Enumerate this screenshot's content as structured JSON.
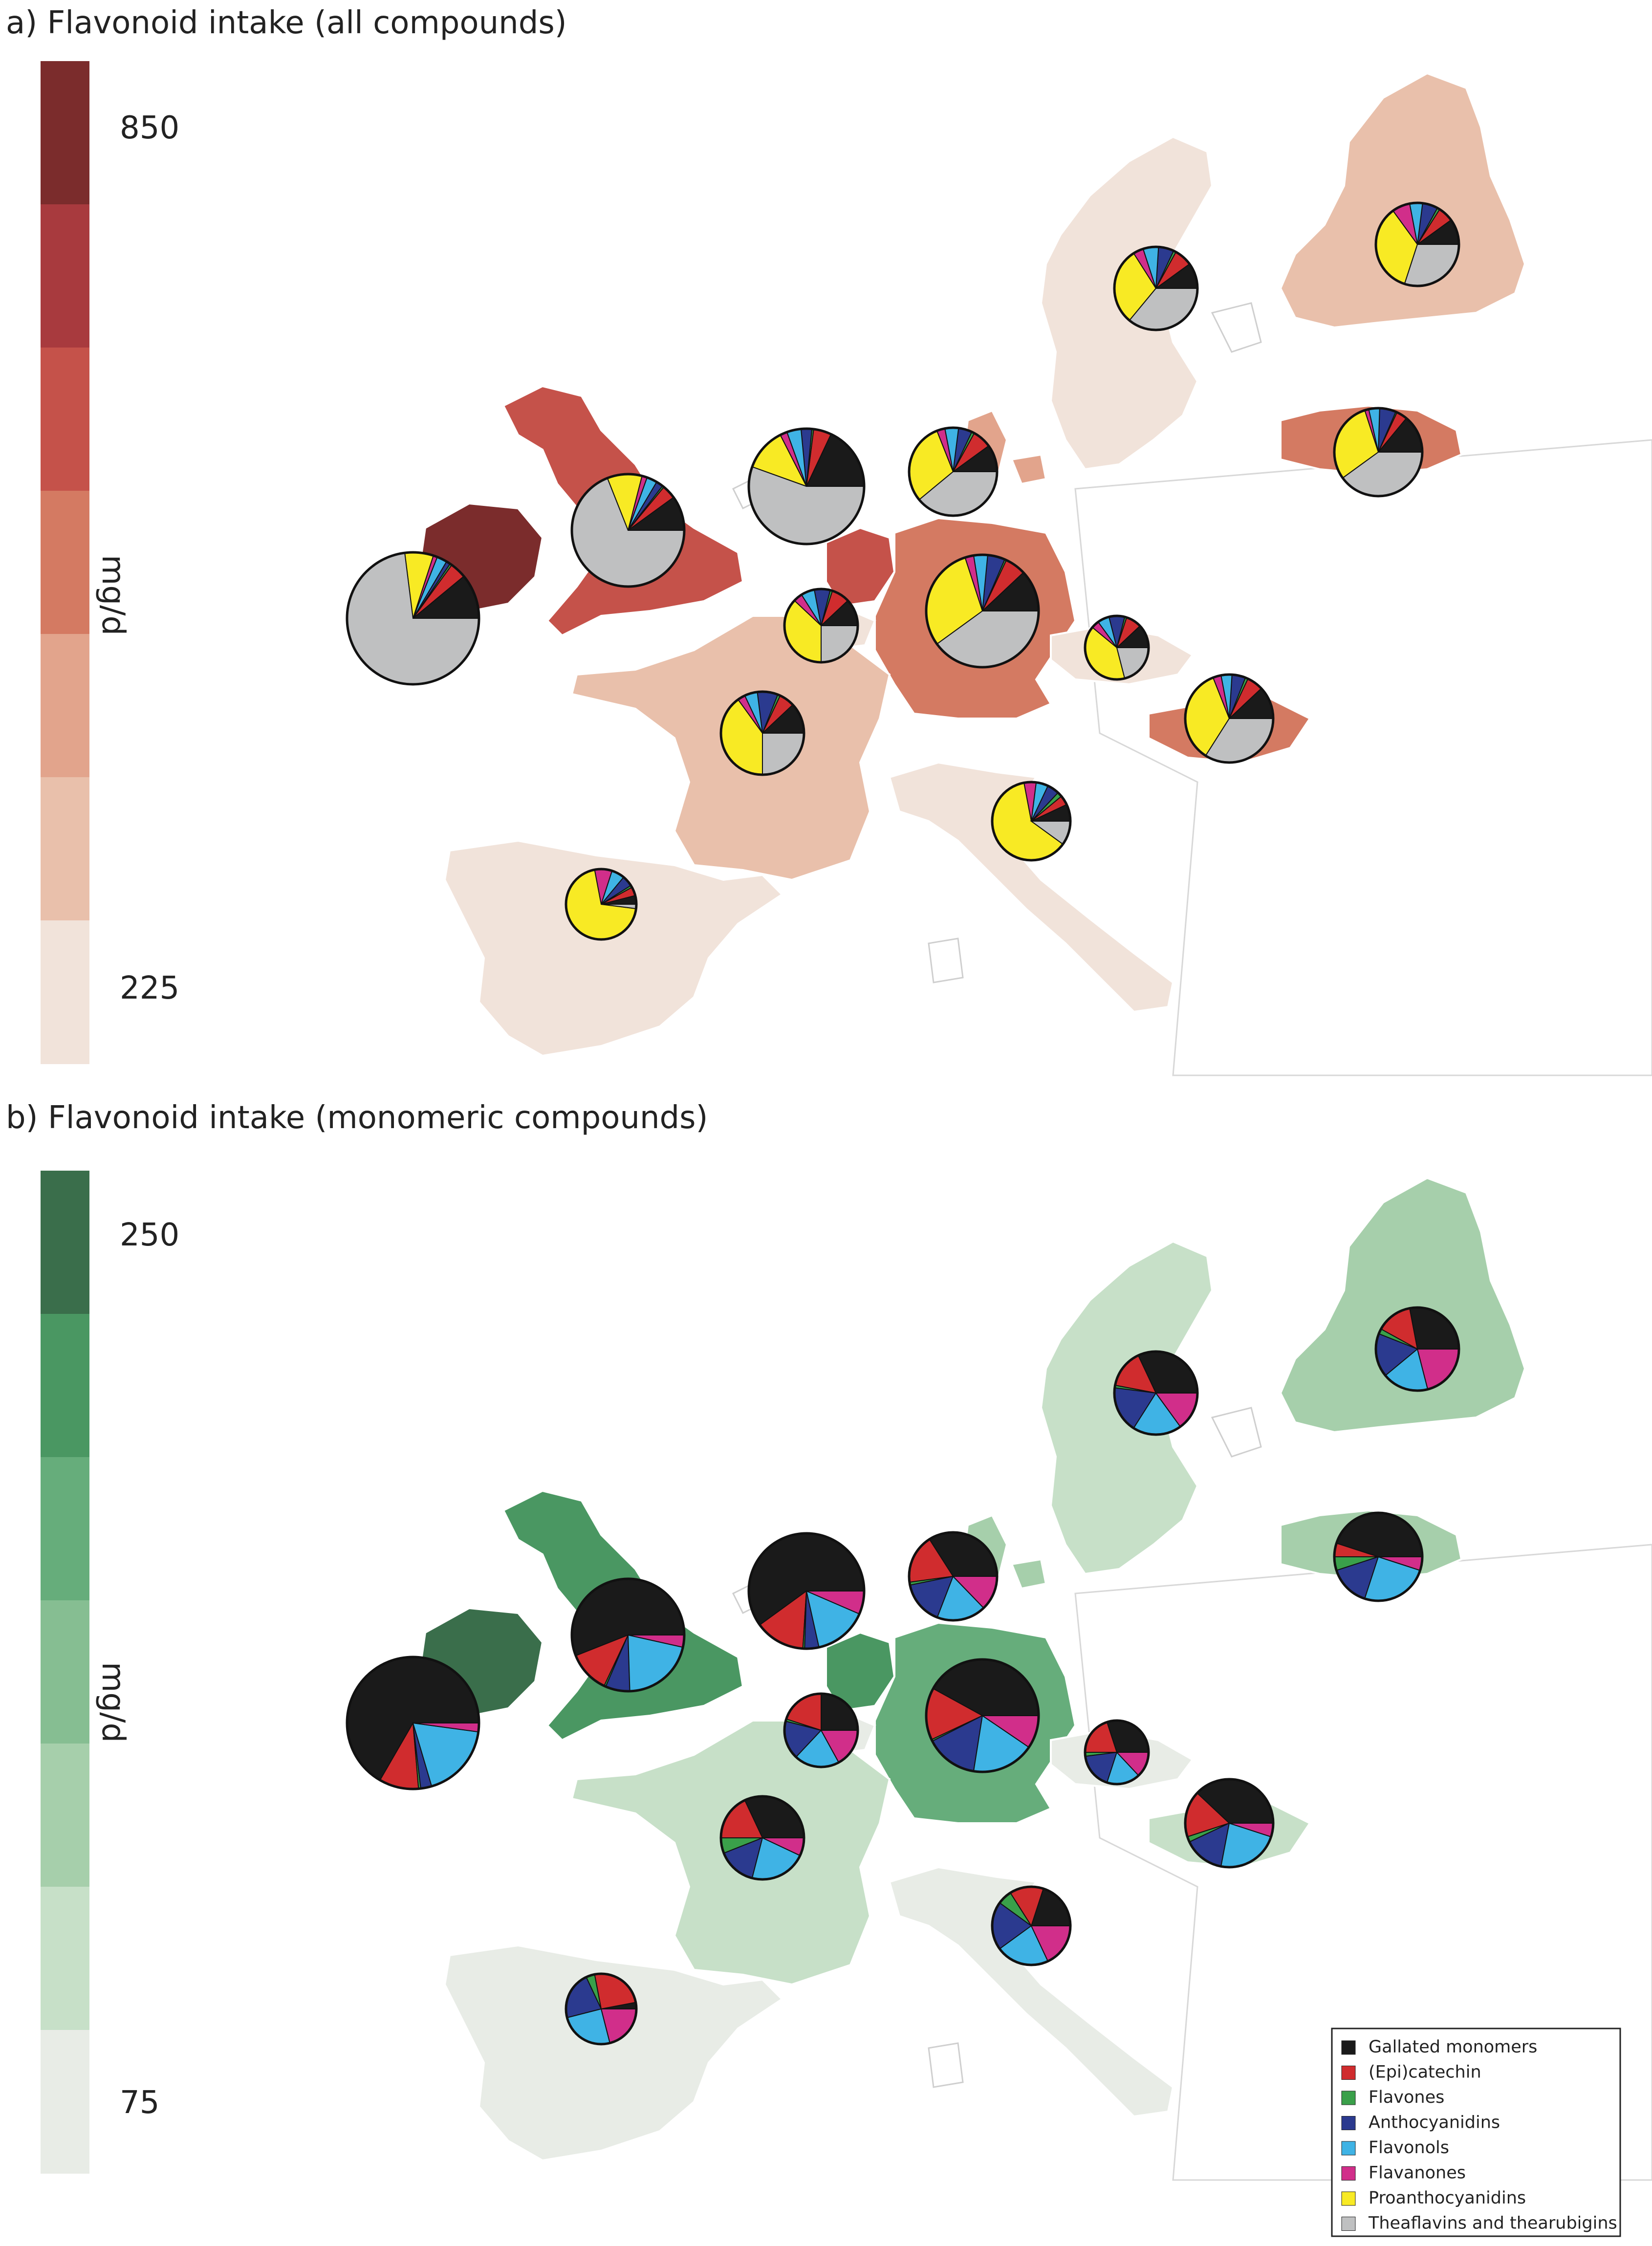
{
  "panel_a": {
    "title": "a) Flavonoid intake (all compounds)",
    "scale_max": "850",
    "scale_min": "225",
    "unit": "mg/d",
    "scale_colors": [
      "#7b2c2c",
      "#a83a3e",
      "#c5524a",
      "#d47a62",
      "#e2a48c",
      "#e9c0ab",
      "#f1e3da"
    ]
  },
  "panel_b": {
    "title": "b) Flavonoid intake (monomeric compounds)",
    "scale_max": "250",
    "scale_min": "75",
    "unit": "mg/d",
    "scale_colors": [
      "#3a6e4b",
      "#4a9762",
      "#66ad7b",
      "#86be92",
      "#a6cfab",
      "#c7e0c8",
      "#e8ece6"
    ]
  },
  "component_colors": {
    "Gallated monomers": "#1a1a1a",
    "(Epi)catechin": "#d02c2e",
    "Flavones": "#3aa04a",
    "Anthocyanidins": "#2b3a8f",
    "Flavonols": "#3fb3e5",
    "Flavanones": "#d12e8a",
    "Proanthocyanidins": "#f8ea24",
    "Theaflavins and thearubigins": "#bfc0c1"
  },
  "legend": {
    "items": [
      {
        "label": "Gallated monomers",
        "color": "#1a1a1a"
      },
      {
        "label": "(Epi)catechin",
        "color": "#d02c2e"
      },
      {
        "label": "Flavones",
        "color": "#3aa04a"
      },
      {
        "label": "Anthocyanidins",
        "color": "#2b3a8f"
      },
      {
        "label": "Flavonols",
        "color": "#3fb3e5"
      },
      {
        "label": "Flavanones",
        "color": "#d12e8a"
      },
      {
        "label": "Proanthocyanidins",
        "color": "#f8ea24"
      },
      {
        "label": "Theaflavins and thearubigins",
        "color": "#bfc0c1"
      }
    ]
  },
  "map_data": {
    "panel_a": {
      "countries": [
        {
          "name": "Ireland",
          "level": 0
        },
        {
          "name": "United Kingdom",
          "level": 2
        },
        {
          "name": "Netherlands",
          "level": 2
        },
        {
          "name": "Germany",
          "level": 3
        },
        {
          "name": "Denmark",
          "level": 4
        },
        {
          "name": "Latvia",
          "level": 3
        },
        {
          "name": "Finland",
          "level": 5
        },
        {
          "name": "Hungary",
          "level": 3
        },
        {
          "name": "France",
          "level": 5
        },
        {
          "name": "Sweden",
          "level": 6
        },
        {
          "name": "Czech Republic",
          "level": 6
        },
        {
          "name": "Italy",
          "level": 6
        },
        {
          "name": "Spain",
          "level": 6
        },
        {
          "name": "Belgium",
          "level": 6
        }
      ],
      "pies": [
        {
          "country": "Ireland",
          "shares": {
            "Gallated monomers": 0.11,
            "(Epi)catechin": 0.04,
            "Flavones": 0.005,
            "Anthocyanidins": 0.01,
            "Flavonols": 0.025,
            "Flavanones": 0.01,
            "Proanthocyanidins": 0.07,
            "Theaflavins and thearubigins": 0.73
          }
        },
        {
          "country": "United Kingdom",
          "shares": {
            "Gallated monomers": 0.1,
            "(Epi)catechin": 0.04,
            "Flavones": 0.005,
            "Anthocyanidins": 0.02,
            "Flavonols": 0.03,
            "Flavanones": 0.015,
            "Proanthocyanidins": 0.1,
            "Theaflavins and thearubigins": 0.69
          }
        },
        {
          "country": "Netherlands",
          "shares": {
            "Gallated monomers": 0.18,
            "(Epi)catechin": 0.05,
            "Flavones": 0.005,
            "Anthocyanidins": 0.03,
            "Flavonols": 0.04,
            "Flavanones": 0.02,
            "Proanthocyanidins": 0.12,
            "Theaflavins and thearubigins": 0.555
          }
        },
        {
          "country": "Denmark",
          "shares": {
            "Gallated monomers": 0.1,
            "(Epi)catechin": 0.07,
            "Flavones": 0.01,
            "Anthocyanidins": 0.05,
            "Flavonols": 0.05,
            "Flavanones": 0.03,
            "Proanthocyanidins": 0.3,
            "Theaflavins and thearubigins": 0.39
          }
        },
        {
          "country": "Sweden",
          "shares": {
            "Gallated monomers": 0.1,
            "(Epi)catechin": 0.07,
            "Flavones": 0.01,
            "Anthocyanidins": 0.06,
            "Flavonols": 0.06,
            "Flavanones": 0.04,
            "Proanthocyanidins": 0.3,
            "Theaflavins and thearubigins": 0.36
          }
        },
        {
          "country": "Finland",
          "shares": {
            "Gallated monomers": 0.1,
            "(Epi)catechin": 0.06,
            "Flavones": 0.01,
            "Anthocyanidins": 0.06,
            "Flavonols": 0.05,
            "Flavanones": 0.07,
            "Proanthocyanidins": 0.35,
            "Theaflavins and thearubigins": 0.3
          }
        },
        {
          "country": "Latvia",
          "shares": {
            "Gallated monomers": 0.14,
            "(Epi)catechin": 0.04,
            "Flavones": 0.005,
            "Anthocyanidins": 0.06,
            "Flavonols": 0.04,
            "Flavanones": 0.015,
            "Proanthocyanidins": 0.3,
            "Theaflavins and thearubigins": 0.4
          }
        },
        {
          "country": "Germany",
          "shares": {
            "Gallated monomers": 0.12,
            "(Epi)catechin": 0.06,
            "Flavones": 0.005,
            "Anthocyanidins": 0.05,
            "Flavonols": 0.04,
            "Flavanones": 0.025,
            "Proanthocyanidins": 0.3,
            "Theaflavins and thearubigins": 0.4
          }
        },
        {
          "country": "Belgium",
          "shares": {
            "Gallated monomers": 0.12,
            "(Epi)catechin": 0.08,
            "Flavones": 0.01,
            "Anthocyanidins": 0.07,
            "Flavonols": 0.06,
            "Flavanones": 0.04,
            "Proanthocyanidins": 0.37,
            "Theaflavins and thearubigins": 0.25
          }
        },
        {
          "country": "Czech Republic",
          "shares": {
            "Gallated monomers": 0.12,
            "(Epi)catechin": 0.08,
            "Flavones": 0.01,
            "Anthocyanidins": 0.08,
            "Flavonols": 0.06,
            "Flavanones": 0.04,
            "Proanthocyanidins": 0.4,
            "Theaflavins and thearubigins": 0.21
          }
        },
        {
          "country": "France",
          "shares": {
            "Gallated monomers": 0.12,
            "(Epi)catechin": 0.06,
            "Flavones": 0.01,
            "Anthocyanidins": 0.08,
            "Flavonols": 0.05,
            "Flavanones": 0.03,
            "Proanthocyanidins": 0.4,
            "Theaflavins and thearubigins": 0.25
          }
        },
        {
          "country": "Hungary",
          "shares": {
            "Gallated monomers": 0.12,
            "(Epi)catechin": 0.06,
            "Flavones": 0.01,
            "Anthocyanidins": 0.05,
            "Flavonols": 0.04,
            "Flavanones": 0.03,
            "Proanthocyanidins": 0.35,
            "Theaflavins and thearubigins": 0.34
          }
        },
        {
          "country": "Italy",
          "shares": {
            "Gallated monomers": 0.07,
            "(Epi)catechin": 0.04,
            "Flavones": 0.02,
            "Anthocyanidins": 0.05,
            "Flavonols": 0.05,
            "Flavanones": 0.05,
            "Proanthocyanidins": 0.62,
            "Theaflavins and thearubigins": 0.1
          }
        },
        {
          "country": "Spain",
          "shares": {
            "Gallated monomers": 0.04,
            "(Epi)catechin": 0.04,
            "Flavones": 0.01,
            "Anthocyanidins": 0.05,
            "Flavonols": 0.06,
            "Flavanones": 0.08,
            "Proanthocyanidins": 0.7,
            "Theaflavins and thearubigins": 0.02
          }
        }
      ]
    },
    "panel_b": {
      "countries": [
        {
          "name": "Ireland",
          "level": 0
        },
        {
          "name": "United Kingdom",
          "level": 1
        },
        {
          "name": "Netherlands",
          "level": 1
        },
        {
          "name": "Germany",
          "level": 2
        },
        {
          "name": "Denmark",
          "level": 4
        },
        {
          "name": "Latvia",
          "level": 4
        },
        {
          "name": "Finland",
          "level": 4
        },
        {
          "name": "Hungary",
          "level": 5
        },
        {
          "name": "France",
          "level": 5
        },
        {
          "name": "Sweden",
          "level": 5
        },
        {
          "name": "Czech Republic",
          "level": 6
        },
        {
          "name": "Italy",
          "level": 6
        },
        {
          "name": "Spain",
          "level": 6
        },
        {
          "name": "Belgium",
          "level": 6
        }
      ],
      "pies": [
        {
          "country": "Ireland",
          "shares": {
            "Gallated monomers": 0.62,
            "(Epi)catechin": 0.09,
            "Flavones": 0.005,
            "Anthocyanidins": 0.025,
            "Flavonols": 0.17,
            "Flavanones": 0.02
          }
        },
        {
          "country": "United Kingdom",
          "shares": {
            "Gallated monomers": 0.56,
            "(Epi)catechin": 0.12,
            "Flavones": 0.005,
            "Anthocyanidins": 0.07,
            "Flavonols": 0.21,
            "Flavanones": 0.035
          }
        },
        {
          "country": "Netherlands",
          "shares": {
            "Gallated monomers": 0.6,
            "(Epi)catechin": 0.14,
            "Flavones": 0.005,
            "Anthocyanidins": 0.04,
            "Flavonols": 0.15,
            "Flavanones": 0.065
          }
        },
        {
          "country": "Denmark",
          "shares": {
            "Gallated monomers": 0.32,
            "(Epi)catechin": 0.17,
            "Flavones": 0.01,
            "Anthocyanidins": 0.15,
            "Flavonols": 0.17,
            "Flavanones": 0.12
          }
        },
        {
          "country": "Sweden",
          "shares": {
            "Gallated monomers": 0.32,
            "(Epi)catechin": 0.15,
            "Flavones": 0.01,
            "Anthocyanidins": 0.18,
            "Flavonols": 0.19,
            "Flavanones": 0.15
          }
        },
        {
          "country": "Finland",
          "shares": {
            "Gallated monomers": 0.28,
            "(Epi)catechin": 0.14,
            "Flavones": 0.02,
            "Anthocyanidins": 0.17,
            "Flavonols": 0.18,
            "Flavanones": 0.21
          }
        },
        {
          "country": "Latvia",
          "shares": {
            "Gallated monomers": 0.45,
            "(Epi)catechin": 0.05,
            "Flavones": 0.05,
            "Anthocyanidins": 0.15,
            "Flavonols": 0.25,
            "Flavanones": 0.05
          }
        },
        {
          "country": "Germany",
          "shares": {
            "Gallated monomers": 0.42,
            "(Epi)catechin": 0.15,
            "Flavones": 0.005,
            "Anthocyanidins": 0.15,
            "Flavonols": 0.18,
            "Flavanones": 0.095
          }
        },
        {
          "country": "Belgium",
          "shares": {
            "Gallated monomers": 0.25,
            "(Epi)catechin": 0.2,
            "Flavones": 0.01,
            "Anthocyanidins": 0.17,
            "Flavonols": 0.2,
            "Flavanones": 0.17
          }
        },
        {
          "country": "Czech Republic",
          "shares": {
            "Gallated monomers": 0.3,
            "(Epi)catechin": 0.2,
            "Flavones": 0.02,
            "Anthocyanidins": 0.18,
            "Flavonols": 0.17,
            "Flavanones": 0.13
          }
        },
        {
          "country": "France",
          "shares": {
            "Gallated monomers": 0.32,
            "(Epi)catechin": 0.18,
            "Flavones": 0.06,
            "Anthocyanidins": 0.15,
            "Flavonols": 0.22,
            "Flavanones": 0.07
          }
        },
        {
          "country": "Hungary",
          "shares": {
            "Gallated monomers": 0.38,
            "(Epi)catechin": 0.17,
            "Flavones": 0.02,
            "Anthocyanidins": 0.15,
            "Flavonols": 0.23,
            "Flavanones": 0.05
          }
        },
        {
          "country": "Italy",
          "shares": {
            "Gallated monomers": 0.2,
            "(Epi)catechin": 0.14,
            "Flavones": 0.06,
            "Anthocyanidins": 0.2,
            "Flavonols": 0.22,
            "Flavanones": 0.18
          }
        },
        {
          "country": "Spain",
          "shares": {
            "Gallated monomers": 0.03,
            "(Epi)catechin": 0.25,
            "Flavones": 0.04,
            "Anthocyanidins": 0.22,
            "Flavonols": 0.25,
            "Flavanones": 0.21
          }
        }
      ]
    }
  }
}
